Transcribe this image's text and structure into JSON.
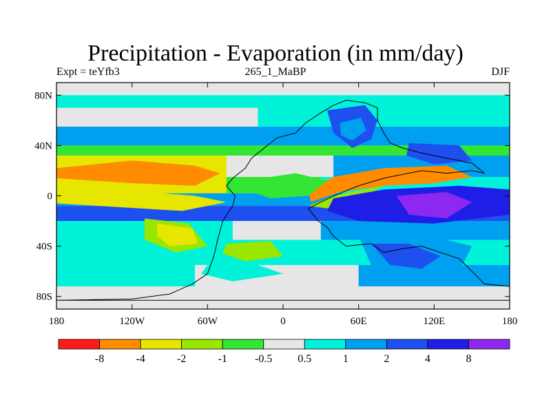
{
  "chart_data": {
    "type": "heatmap",
    "title": "Precipitation - Evaporation (in mm/day)",
    "subtitle_left": "Expt = teYfb3",
    "subtitle_center": "265_1_MaBP",
    "subtitle_right": "DJF",
    "xlim": [
      -180,
      180
    ],
    "ylim": [
      -90,
      90
    ],
    "x_ticks": [
      {
        "value": -180,
        "label": "180"
      },
      {
        "value": -120,
        "label": "120W"
      },
      {
        "value": -60,
        "label": "60W"
      },
      {
        "value": 0,
        "label": "0"
      },
      {
        "value": 60,
        "label": "60E"
      },
      {
        "value": 120,
        "label": "120E"
      },
      {
        "value": 180,
        "label": "180"
      }
    ],
    "y_ticks": [
      {
        "value": 80,
        "label": "80N"
      },
      {
        "value": 40,
        "label": "40N"
      },
      {
        "value": 0,
        "label": "0"
      },
      {
        "value": -40,
        "label": "40S"
      },
      {
        "value": -80,
        "label": "80S"
      }
    ],
    "colorbar": {
      "colors": [
        "#ff1a1a",
        "#ff8c00",
        "#e6e600",
        "#99e600",
        "#33e633",
        "#e6e6e6",
        "#00f2d8",
        "#00a0f0",
        "#1e50f0",
        "#1e1ee6",
        "#8c28f0"
      ],
      "labels": [
        "-8",
        "-4",
        "-2",
        "-1",
        "-0.5",
        "0.5",
        "1",
        "2",
        "4",
        "8"
      ]
    },
    "bands": [
      {
        "lat": [
          80,
          90
        ],
        "lon": [
          -180,
          180
        ],
        "class": 5
      },
      {
        "lat": [
          70,
          80
        ],
        "lon": [
          -180,
          180
        ],
        "class": 6
      },
      {
        "lat": [
          55,
          70
        ],
        "lon": [
          -180,
          -20
        ],
        "class": 5
      },
      {
        "lat": [
          55,
          70
        ],
        "lon": [
          -20,
          180
        ],
        "class": 6
      },
      {
        "lat": [
          40,
          55
        ],
        "lon": [
          -180,
          180
        ],
        "class": 7
      },
      {
        "lat": [
          32,
          40
        ],
        "lon": [
          -180,
          180
        ],
        "class": 4
      },
      {
        "lat": [
          15,
          32
        ],
        "lon": [
          -180,
          -45
        ],
        "class": 2
      },
      {
        "lat": [
          15,
          32
        ],
        "lon": [
          -20,
          40
        ],
        "class": 5
      },
      {
        "lat": [
          15,
          32
        ],
        "lon": [
          40,
          180
        ],
        "class": 7
      },
      {
        "lat": [
          2,
          15
        ],
        "lon": [
          -180,
          -45
        ],
        "class": 2
      },
      {
        "lat": [
          2,
          15
        ],
        "lon": [
          -45,
          30
        ],
        "class": 4
      },
      {
        "lat": [
          2,
          15
        ],
        "lon": [
          30,
          180
        ],
        "class": 6
      },
      {
        "lat": [
          -8,
          2
        ],
        "lon": [
          -180,
          180
        ],
        "class": 7
      },
      {
        "lat": [
          -20,
          -8
        ],
        "lon": [
          -180,
          180
        ],
        "class": 8
      },
      {
        "lat": [
          -35,
          -20
        ],
        "lon": [
          -180,
          -40
        ],
        "class": 6
      },
      {
        "lat": [
          -35,
          -20
        ],
        "lon": [
          -40,
          30
        ],
        "class": 5
      },
      {
        "lat": [
          -35,
          -20
        ],
        "lon": [
          30,
          180
        ],
        "class": 7
      },
      {
        "lat": [
          -55,
          -35
        ],
        "lon": [
          -180,
          180
        ],
        "class": 6
      },
      {
        "lat": [
          -72,
          -55
        ],
        "lon": [
          -180,
          -70
        ],
        "class": 6
      },
      {
        "lat": [
          -72,
          -55
        ],
        "lon": [
          -70,
          60
        ],
        "class": 5
      },
      {
        "lat": [
          -72,
          -55
        ],
        "lon": [
          60,
          180
        ],
        "class": 7
      },
      {
        "lat": [
          -90,
          -72
        ],
        "lon": [
          -180,
          180
        ],
        "class": 5
      }
    ],
    "regions": [
      {
        "name": "north-pangea-wet",
        "class": 8,
        "points": [
          [
            35,
            68
          ],
          [
            65,
            72
          ],
          [
            75,
            60
          ],
          [
            70,
            45
          ],
          [
            55,
            38
          ],
          [
            40,
            50
          ]
        ]
      },
      {
        "name": "north-pangea-inner",
        "class": 7,
        "points": [
          [
            45,
            58
          ],
          [
            62,
            62
          ],
          [
            66,
            52
          ],
          [
            55,
            44
          ],
          [
            46,
            48
          ]
        ]
      },
      {
        "name": "east-asia-blue",
        "class": 8,
        "points": [
          [
            100,
            42
          ],
          [
            140,
            40
          ],
          [
            150,
            28
          ],
          [
            120,
            25
          ],
          [
            98,
            32
          ]
        ]
      },
      {
        "name": "tethys-dry-belt",
        "class": 1,
        "points": [
          [
            20,
            5
          ],
          [
            40,
            15
          ],
          [
            80,
            22
          ],
          [
            130,
            24
          ],
          [
            150,
            15
          ],
          [
            120,
            10
          ],
          [
            80,
            8
          ],
          [
            45,
            3
          ],
          [
            22,
            -5
          ]
        ]
      },
      {
        "name": "tethys-south-green",
        "class": 3,
        "points": [
          [
            20,
            -8
          ],
          [
            40,
            0
          ],
          [
            80,
            8
          ],
          [
            60,
            -3
          ],
          [
            35,
            -10
          ]
        ]
      },
      {
        "name": "equatorial-east-blue",
        "class": 9,
        "points": [
          [
            40,
            -2
          ],
          [
            80,
            5
          ],
          [
            140,
            8
          ],
          [
            180,
            5
          ],
          [
            180,
            -15
          ],
          [
            120,
            -22
          ],
          [
            60,
            -20
          ],
          [
            35,
            -12
          ]
        ]
      },
      {
        "name": "equatorial-east-indigo",
        "class": 10,
        "points": [
          [
            90,
            0
          ],
          [
            130,
            3
          ],
          [
            150,
            -5
          ],
          [
            130,
            -18
          ],
          [
            100,
            -15
          ]
        ]
      },
      {
        "name": "west-ocean-orange",
        "class": 1,
        "points": [
          [
            -180,
            22
          ],
          [
            -120,
            28
          ],
          [
            -70,
            24
          ],
          [
            -50,
            18
          ],
          [
            -70,
            8
          ],
          [
            -120,
            10
          ],
          [
            -180,
            14
          ]
        ]
      },
      {
        "name": "west-ocean-yellow",
        "class": 2,
        "points": [
          [
            -180,
            5
          ],
          [
            -120,
            4
          ],
          [
            -70,
            0
          ],
          [
            -45,
            -5
          ],
          [
            -80,
            -12
          ],
          [
            -180,
            -6
          ]
        ]
      },
      {
        "name": "south-ocean-green",
        "class": 3,
        "points": [
          [
            -110,
            -18
          ],
          [
            -75,
            -22
          ],
          [
            -60,
            -40
          ],
          [
            -85,
            -45
          ],
          [
            -110,
            -35
          ]
        ]
      },
      {
        "name": "south-ocean-yellow",
        "class": 2,
        "points": [
          [
            -100,
            -22
          ],
          [
            -72,
            -26
          ],
          [
            -68,
            -38
          ],
          [
            -90,
            -40
          ],
          [
            -100,
            -32
          ]
        ]
      },
      {
        "name": "continent-interior-green",
        "class": 4,
        "points": [
          [
            -30,
            12
          ],
          [
            10,
            18
          ],
          [
            35,
            12
          ],
          [
            20,
            0
          ],
          [
            -10,
            -2
          ],
          [
            -30,
            5
          ]
        ]
      },
      {
        "name": "continent-south-lime",
        "class": 3,
        "points": [
          [
            -45,
            -38
          ],
          [
            -10,
            -36
          ],
          [
            0,
            -48
          ],
          [
            -30,
            -52
          ],
          [
            -48,
            -46
          ]
        ]
      },
      {
        "name": "south-continent-blue",
        "class": 7,
        "points": [
          [
            60,
            -32
          ],
          [
            110,
            -30
          ],
          [
            150,
            -40
          ],
          [
            140,
            -60
          ],
          [
            100,
            -65
          ],
          [
            70,
            -55
          ]
        ]
      },
      {
        "name": "south-continent-deep",
        "class": 8,
        "points": [
          [
            70,
            -38
          ],
          [
            100,
            -38
          ],
          [
            125,
            -48
          ],
          [
            110,
            -58
          ],
          [
            85,
            -55
          ]
        ]
      },
      {
        "name": "south-cyan-pocket",
        "class": 6,
        "points": [
          [
            -60,
            -55
          ],
          [
            -20,
            -55
          ],
          [
            0,
            -62
          ],
          [
            -40,
            -68
          ],
          [
            -65,
            -62
          ]
        ]
      }
    ],
    "land_outline": [
      [
        -180,
        -83
      ],
      [
        180,
        -83
      ],
      [
        180,
        -72
      ],
      [
        160,
        -70
      ],
      [
        150,
        -60
      ],
      [
        140,
        -50
      ],
      [
        125,
        -45
      ],
      [
        110,
        -40
      ],
      [
        95,
        -42
      ],
      [
        80,
        -45
      ],
      [
        70,
        -38
      ],
      [
        50,
        -40
      ],
      [
        40,
        -32
      ],
      [
        35,
        -25
      ],
      [
        28,
        -20
      ],
      [
        20,
        -10
      ],
      [
        30,
        -5
      ],
      [
        45,
        2
      ],
      [
        60,
        8
      ],
      [
        80,
        14
      ],
      [
        110,
        20
      ],
      [
        130,
        18
      ],
      [
        150,
        20
      ],
      [
        160,
        18
      ],
      [
        150,
        26
      ],
      [
        130,
        30
      ],
      [
        110,
        34
      ],
      [
        95,
        38
      ],
      [
        85,
        42
      ],
      [
        80,
        50
      ],
      [
        75,
        60
      ],
      [
        75,
        70
      ],
      [
        65,
        74
      ],
      [
        50,
        76
      ],
      [
        40,
        72
      ],
      [
        30,
        66
      ],
      [
        18,
        58
      ],
      [
        10,
        50
      ],
      [
        -5,
        46
      ],
      [
        -15,
        38
      ],
      [
        -25,
        30
      ],
      [
        -30,
        22
      ],
      [
        -40,
        14
      ],
      [
        -45,
        8
      ],
      [
        -38,
        0
      ],
      [
        -40,
        -8
      ],
      [
        -48,
        -20
      ],
      [
        -52,
        -35
      ],
      [
        -55,
        -48
      ],
      [
        -60,
        -62
      ],
      [
        -72,
        -70
      ],
      [
        -90,
        -78
      ],
      [
        -120,
        -82
      ],
      [
        -180,
        -83
      ]
    ]
  }
}
